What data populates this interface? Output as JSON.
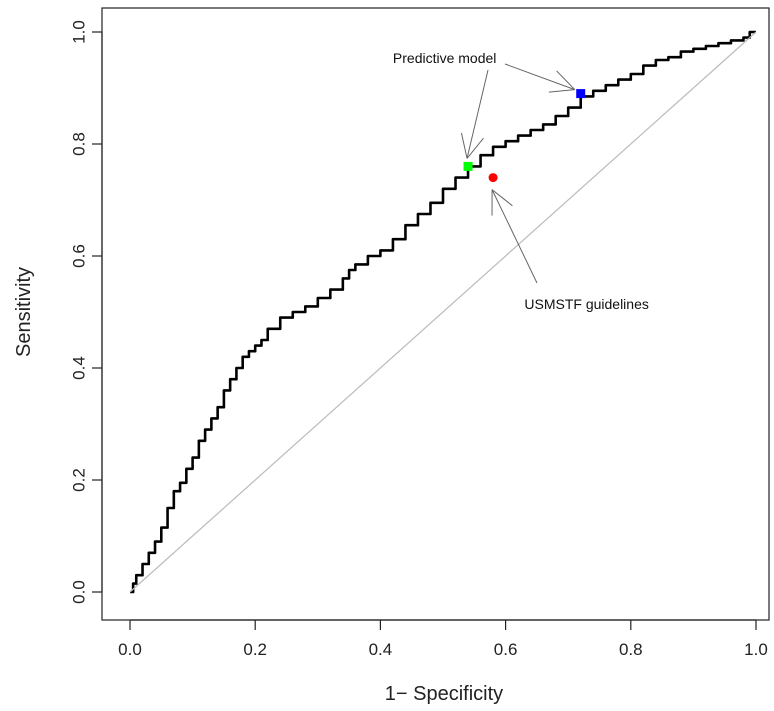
{
  "chart_data": {
    "type": "line",
    "title": "",
    "xlabel": "1− Specificity",
    "ylabel": "Sensitivity",
    "xlim": [
      0,
      1
    ],
    "ylim": [
      0,
      1
    ],
    "xticks": [
      "0.0",
      "0.2",
      "0.4",
      "0.6",
      "0.8",
      "1.0"
    ],
    "yticks": [
      "0.0",
      "0.2",
      "0.4",
      "0.6",
      "0.8",
      "1.0"
    ],
    "grid": false,
    "legend": "none",
    "series": [
      {
        "kind": "roc-curve",
        "color": "#000000",
        "x": [
          0.0,
          0.005,
          0.01,
          0.02,
          0.03,
          0.04,
          0.05,
          0.06,
          0.07,
          0.08,
          0.09,
          0.1,
          0.11,
          0.12,
          0.13,
          0.14,
          0.15,
          0.16,
          0.17,
          0.18,
          0.19,
          0.2,
          0.21,
          0.22,
          0.24,
          0.26,
          0.28,
          0.3,
          0.32,
          0.34,
          0.35,
          0.36,
          0.38,
          0.4,
          0.42,
          0.44,
          0.46,
          0.48,
          0.5,
          0.52,
          0.54,
          0.56,
          0.58,
          0.6,
          0.62,
          0.64,
          0.66,
          0.68,
          0.7,
          0.72,
          0.74,
          0.76,
          0.78,
          0.8,
          0.82,
          0.84,
          0.86,
          0.88,
          0.9,
          0.92,
          0.94,
          0.96,
          0.98,
          0.99,
          1.0
        ],
        "y": [
          0.0,
          0.015,
          0.03,
          0.05,
          0.07,
          0.09,
          0.115,
          0.15,
          0.18,
          0.195,
          0.22,
          0.24,
          0.27,
          0.29,
          0.31,
          0.33,
          0.36,
          0.38,
          0.4,
          0.42,
          0.43,
          0.44,
          0.45,
          0.47,
          0.49,
          0.5,
          0.51,
          0.525,
          0.54,
          0.56,
          0.575,
          0.585,
          0.6,
          0.61,
          0.63,
          0.655,
          0.675,
          0.695,
          0.72,
          0.74,
          0.76,
          0.78,
          0.795,
          0.805,
          0.815,
          0.825,
          0.835,
          0.85,
          0.865,
          0.885,
          0.895,
          0.905,
          0.915,
          0.925,
          0.94,
          0.95,
          0.955,
          0.965,
          0.97,
          0.975,
          0.98,
          0.985,
          0.99,
          1.0,
          1.0
        ]
      },
      {
        "kind": "reference-diagonal",
        "color": "#bbbbbb",
        "x": [
          0,
          1
        ],
        "y": [
          0,
          1
        ]
      }
    ],
    "points": [
      {
        "label": "Predictive model",
        "x": 0.54,
        "y": 0.76,
        "color": "#00ff00",
        "shape": "square"
      },
      {
        "label": "Predictive model",
        "x": 0.72,
        "y": 0.89,
        "color": "#0000ff",
        "shape": "square"
      },
      {
        "label": "USMSTF guidelines",
        "x": 0.58,
        "y": 0.74,
        "color": "#ff0000",
        "shape": "circle"
      }
    ],
    "annotations": [
      {
        "text": "Predictive model",
        "x": 0.42,
        "y": 0.945
      },
      {
        "text": "USMSTF guidelines",
        "x": 0.63,
        "y": 0.505
      }
    ]
  }
}
